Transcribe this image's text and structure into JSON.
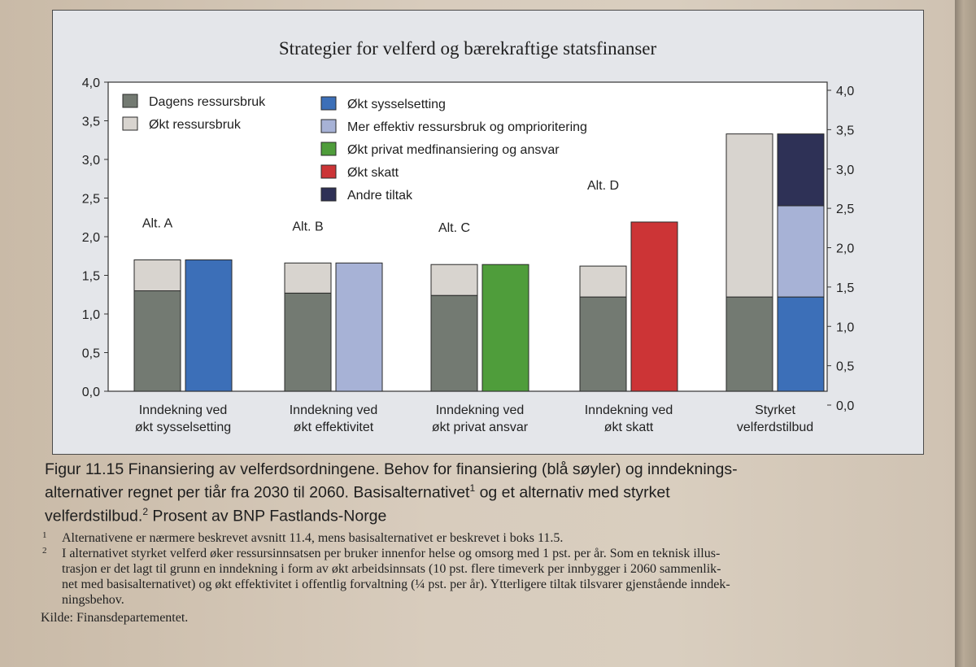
{
  "chart_data": {
    "type": "bar",
    "title": "Strategier for velferd og bærekraftige statsfinanser",
    "ylim": [
      0,
      4.0
    ],
    "ylim_right": [
      0,
      4.0
    ],
    "y_ticks": [
      "0,0",
      "0,5",
      "1,0",
      "1,5",
      "2,0",
      "2,5",
      "3,0",
      "3,5",
      "4,0"
    ],
    "grid": false,
    "legend_position": "top-left",
    "legend": [
      {
        "name": "Dagens ressursbruk",
        "color": "#737a72"
      },
      {
        "name": "Økt ressursbruk",
        "color": "#d8d4cf"
      },
      {
        "name": "Økt sysselsetting",
        "color": "#3c6fb8"
      },
      {
        "name": "Mer effektiv ressursbruk og omprioritering",
        "color": "#a7b2d6"
      },
      {
        "name": "Økt privat medfinansiering og ansvar",
        "color": "#4f9d3b"
      },
      {
        "name": "Økt skatt",
        "color": "#cc3436"
      },
      {
        "name": "Andre tiltak",
        "color": "#2e3156"
      }
    ],
    "groups": [
      {
        "category": "Inndekning ved økt sysselsetting",
        "alt_label": "Alt. A",
        "need": [
          {
            "series": "Dagens ressursbruk",
            "value": 1.3
          },
          {
            "series": "Økt ressursbruk",
            "value": 0.4
          }
        ],
        "financing": [
          {
            "series": "Økt sysselsetting",
            "value": 1.7
          }
        ]
      },
      {
        "category": "Inndekning ved økt effektivitet",
        "alt_label": "Alt. B",
        "need": [
          {
            "series": "Dagens ressursbruk",
            "value": 1.27
          },
          {
            "series": "Økt ressursbruk",
            "value": 0.39
          }
        ],
        "financing": [
          {
            "series": "Mer effektiv ressursbruk og omprioritering",
            "value": 1.66
          }
        ]
      },
      {
        "category": "Inndekning ved økt privat ansvar",
        "alt_label": "Alt. C",
        "need": [
          {
            "series": "Dagens ressursbruk",
            "value": 1.24
          },
          {
            "series": "Økt ressursbruk",
            "value": 0.4
          }
        ],
        "financing": [
          {
            "series": "Økt privat medfinansiering og ansvar",
            "value": 1.64
          }
        ]
      },
      {
        "category": "Inndekning ved økt skatt",
        "alt_label": "Alt. D",
        "need": [
          {
            "series": "Dagens ressursbruk",
            "value": 1.22
          },
          {
            "series": "Økt ressursbruk",
            "value": 0.4
          }
        ],
        "financing": [
          {
            "series": "Økt skatt",
            "value": 2.19
          }
        ]
      },
      {
        "category": "Styrket velferdstilbud",
        "alt_label": "",
        "need": [
          {
            "series": "Dagens ressursbruk",
            "value": 1.22
          },
          {
            "series": "Økt ressursbruk",
            "value": 2.11
          }
        ],
        "financing": [
          {
            "series": "Økt sysselsetting",
            "value": 1.22
          },
          {
            "series": "Mer effektiv ressursbruk og omprioritering",
            "value": 1.18
          },
          {
            "series": "Andre tiltak",
            "value": 0.93
          }
        ]
      }
    ],
    "category_lines": [
      [
        "Inndekning ved",
        "økt sysselsetting"
      ],
      [
        "Inndekning ved",
        "økt effektivitet"
      ],
      [
        "Inndekning ved",
        "økt privat ansvar"
      ],
      [
        "Inndekning ved",
        "økt skatt"
      ],
      [
        "Styrket",
        "velferdstilbud"
      ]
    ]
  },
  "caption": {
    "line1": "Figur 11.15  Finansiering av velferdsordningene. Behov for finansiering (blå søyler) og inndeknings-",
    "line2a": "alternativer regnet per tiår fra 2030 til 2060. Basisalternativet",
    "sup1": "1",
    "line2b": " og et alternativ med styrket",
    "line3a": "velferdstilbud.",
    "sup2": "2",
    "line3b": " Prosent av BNP Fastlands-Norge"
  },
  "notes": [
    {
      "num": "1",
      "lines": [
        "Alternativene er nærmere beskrevet avsnitt 11.4, mens basisalternativet er beskrevet i boks 11.5."
      ]
    },
    {
      "num": "2",
      "lines": [
        "I alternativet styrket velferd øker ressursinnsatsen per bruker innenfor helse og omsorg med 1 pst. per år. Som en teknisk illus-",
        "trasjon er det lagt til grunn en inndekning i form av økt arbeidsinnsats (10 pst. flere timeverk per innbygger i 2060 sammenlik-",
        "net med basisalternativet) og økt effektivitet i offentlig forvaltning (¼ pst. per år). Ytterligere tiltak tilsvarer gjenstående inndek-",
        "ningsbehov."
      ]
    }
  ],
  "source": "Kilde: Finansdepartementet."
}
